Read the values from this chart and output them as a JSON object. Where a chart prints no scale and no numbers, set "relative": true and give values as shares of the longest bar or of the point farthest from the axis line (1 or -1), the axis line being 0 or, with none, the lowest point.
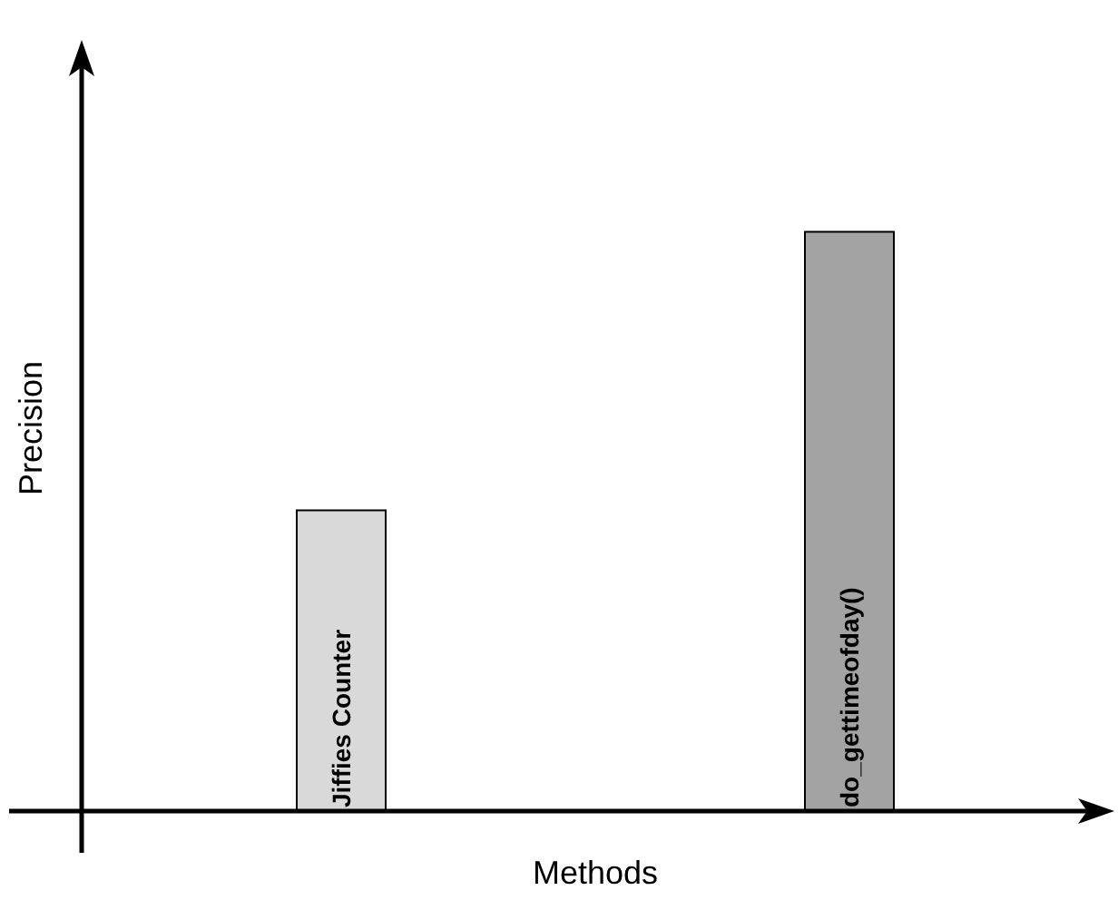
{
  "chart_data": {
    "type": "bar",
    "relative": true,
    "xlabel": "Methods",
    "ylabel": "Precision",
    "categories": [
      "Jiffies Counter",
      "do_gettimeofday()"
    ],
    "values": [
      0.52,
      1
    ],
    "colors": [
      "#d9d9d9",
      "#a3a3a3"
    ],
    "grid": false
  }
}
